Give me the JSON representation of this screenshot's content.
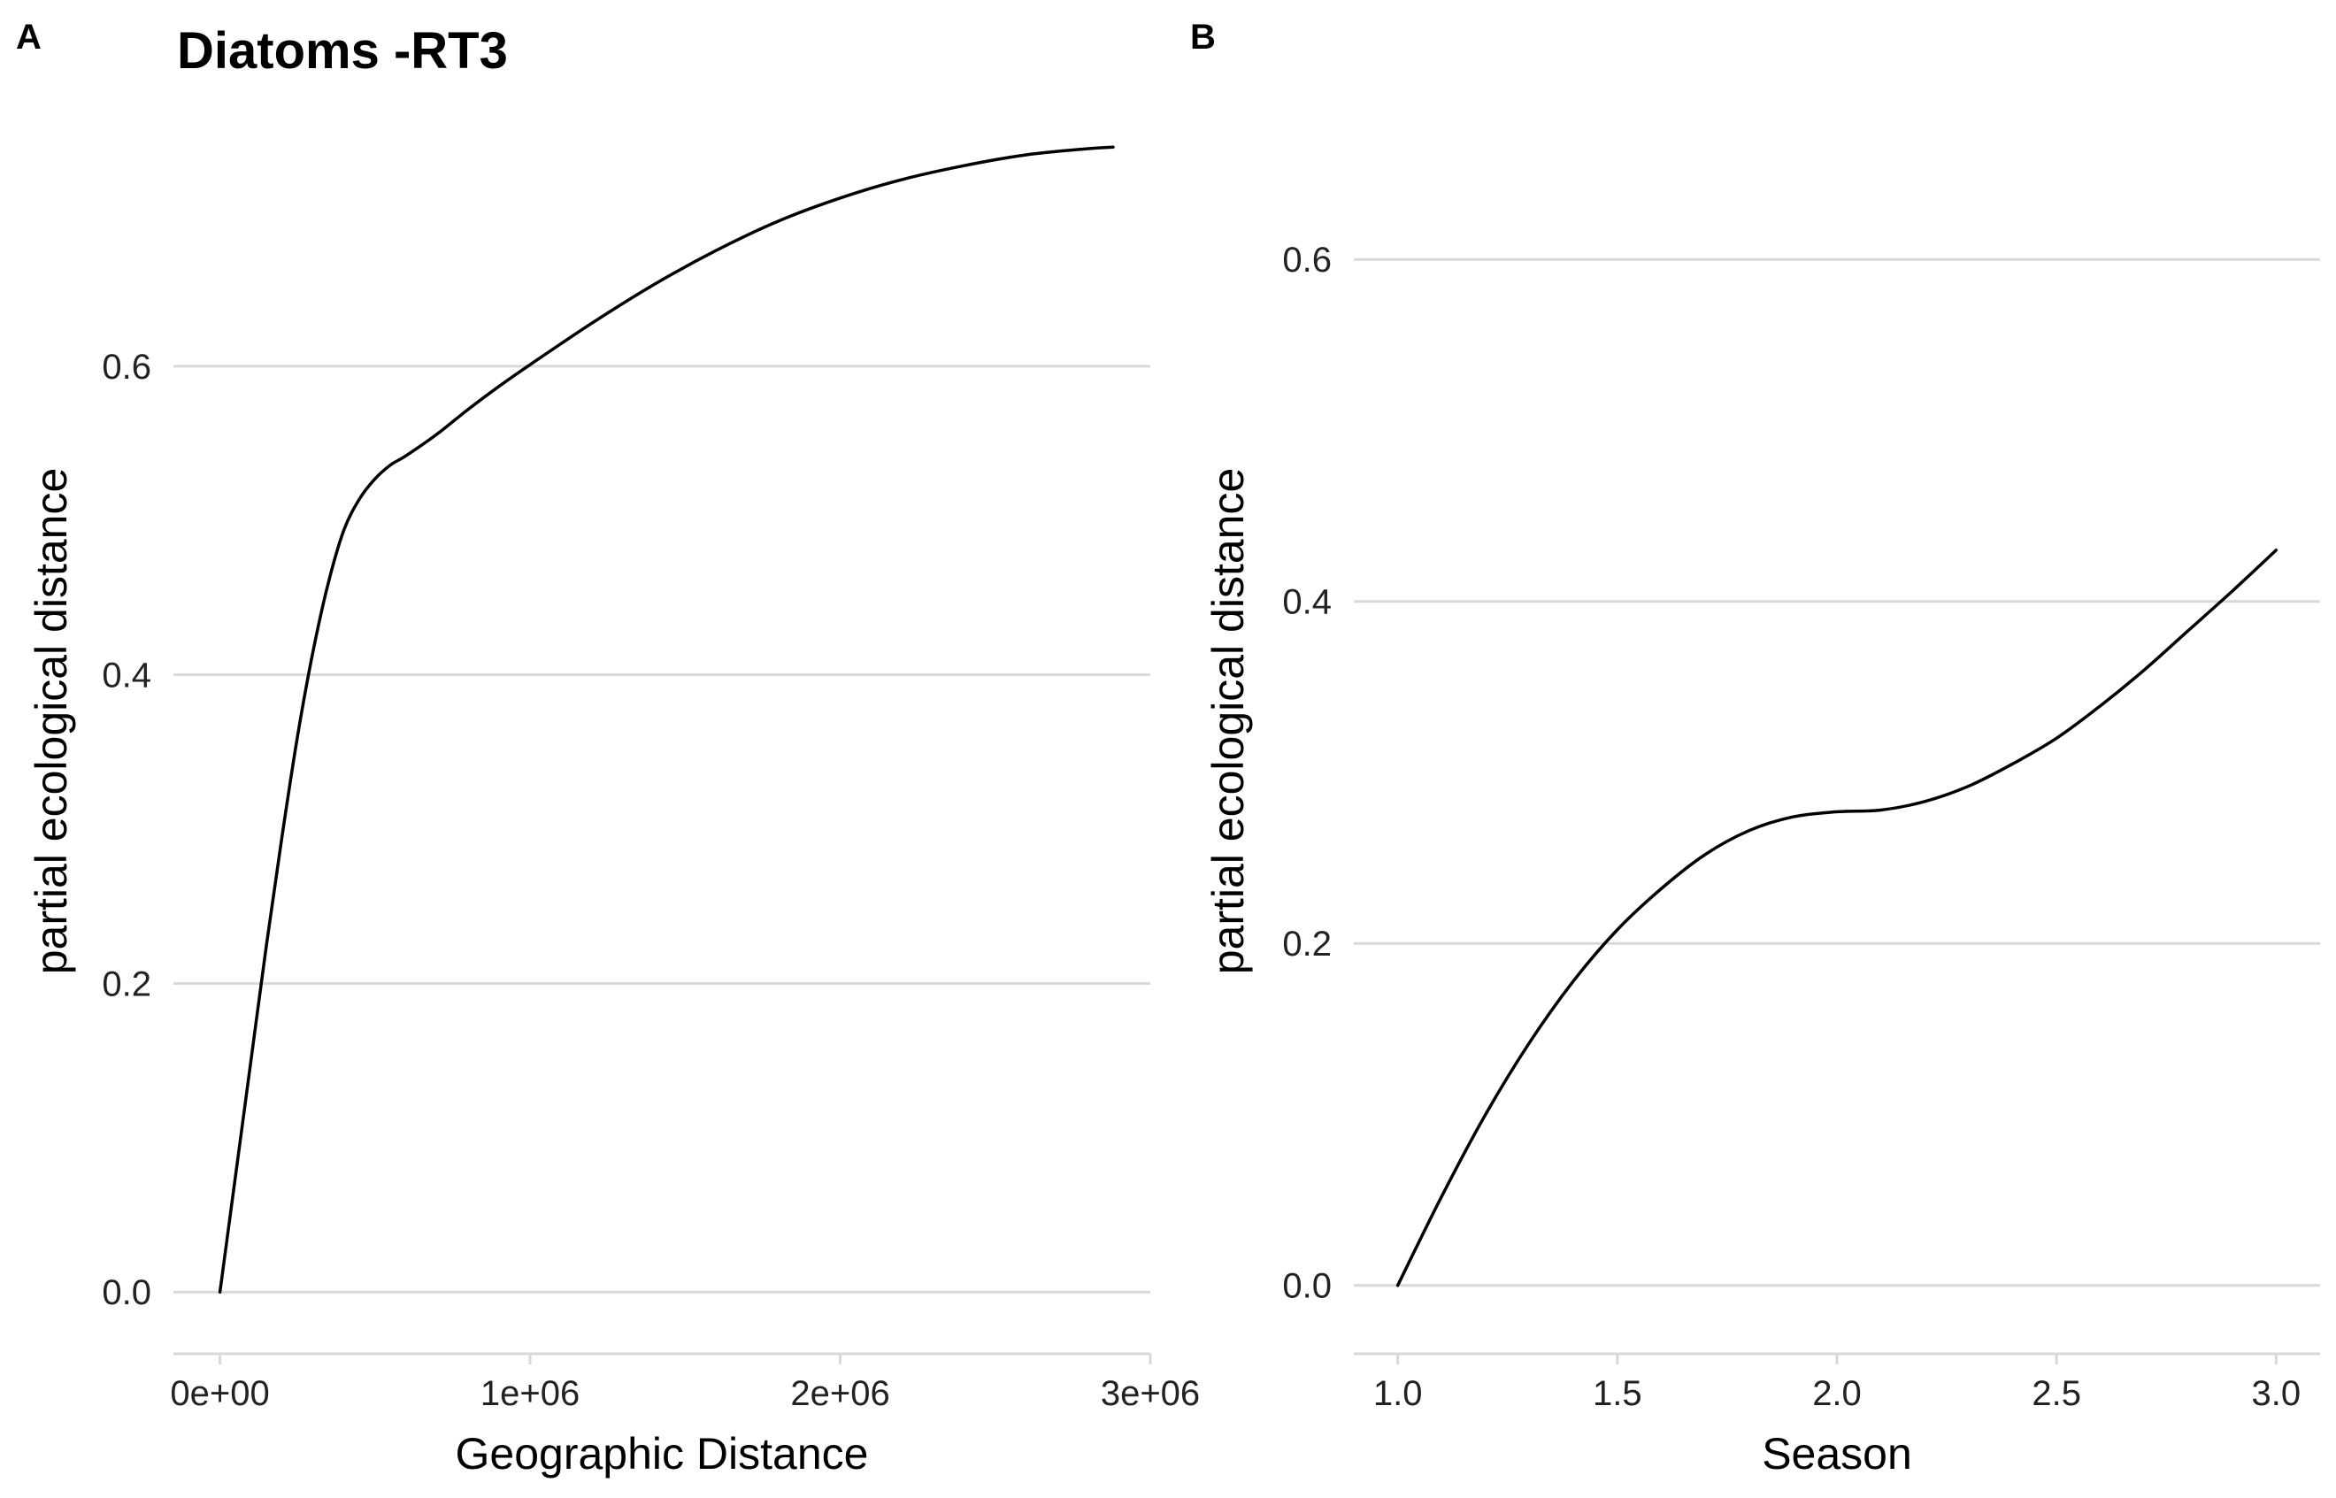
{
  "chart_data": [
    {
      "panel_label": "A",
      "type": "line",
      "title": "Diatoms -RT3",
      "xlabel": "Geographic Distance",
      "ylabel": "partial ecological distance",
      "xlim": [
        -150000,
        3000000
      ],
      "ylim": [
        -0.04,
        0.78
      ],
      "x_ticks": [
        0,
        1000000,
        2000000,
        3000000
      ],
      "x_tick_labels": [
        "0e+00",
        "1e+06",
        "2e+06",
        "3e+06"
      ],
      "y_ticks": [
        0.0,
        0.2,
        0.4,
        0.6
      ],
      "y_tick_labels": [
        "0.0",
        "0.2",
        "0.4",
        "0.6"
      ],
      "grid": "horizontal",
      "series": [
        {
          "x": [
            0,
            50000,
            100000,
            150000,
            200000,
            250000,
            300000,
            350000,
            400000,
            450000,
            500000,
            550000,
            600000,
            700000,
            800000,
            900000,
            1000000,
            1200000,
            1400000,
            1600000,
            1800000,
            2000000,
            2200000,
            2400000,
            2600000,
            2800000,
            2880000
          ],
          "y": [
            0.0,
            0.075,
            0.15,
            0.225,
            0.295,
            0.36,
            0.415,
            0.46,
            0.494,
            0.514,
            0.527,
            0.536,
            0.542,
            0.556,
            0.572,
            0.587,
            0.601,
            0.628,
            0.653,
            0.675,
            0.694,
            0.709,
            0.721,
            0.73,
            0.737,
            0.741,
            0.742
          ]
        }
      ]
    },
    {
      "panel_label": "B",
      "type": "line",
      "title": "",
      "xlabel": "Season",
      "ylabel": "partial ecological distance",
      "xlim": [
        0.9,
        3.1
      ],
      "ylim": [
        -0.04,
        0.7
      ],
      "x_ticks": [
        1.0,
        1.5,
        2.0,
        2.5,
        3.0
      ],
      "x_tick_labels": [
        "1.0",
        "1.5",
        "2.0",
        "2.5",
        "3.0"
      ],
      "y_ticks": [
        0.0,
        0.2,
        0.4,
        0.6
      ],
      "y_tick_labels": [
        "0.0",
        "0.2",
        "0.4",
        "0.6"
      ],
      "grid": "horizontal",
      "series": [
        {
          "x": [
            1.0,
            1.1,
            1.2,
            1.3,
            1.4,
            1.5,
            1.6,
            1.7,
            1.8,
            1.9,
            2.0,
            2.1,
            2.2,
            2.3,
            2.4,
            2.5,
            2.6,
            2.7,
            2.8,
            2.9,
            3.0
          ],
          "y": [
            0.0,
            0.052,
            0.1,
            0.142,
            0.178,
            0.208,
            0.232,
            0.252,
            0.266,
            0.274,
            0.277,
            0.278,
            0.283,
            0.292,
            0.305,
            0.32,
            0.339,
            0.36,
            0.383,
            0.406,
            0.43
          ]
        }
      ]
    }
  ]
}
